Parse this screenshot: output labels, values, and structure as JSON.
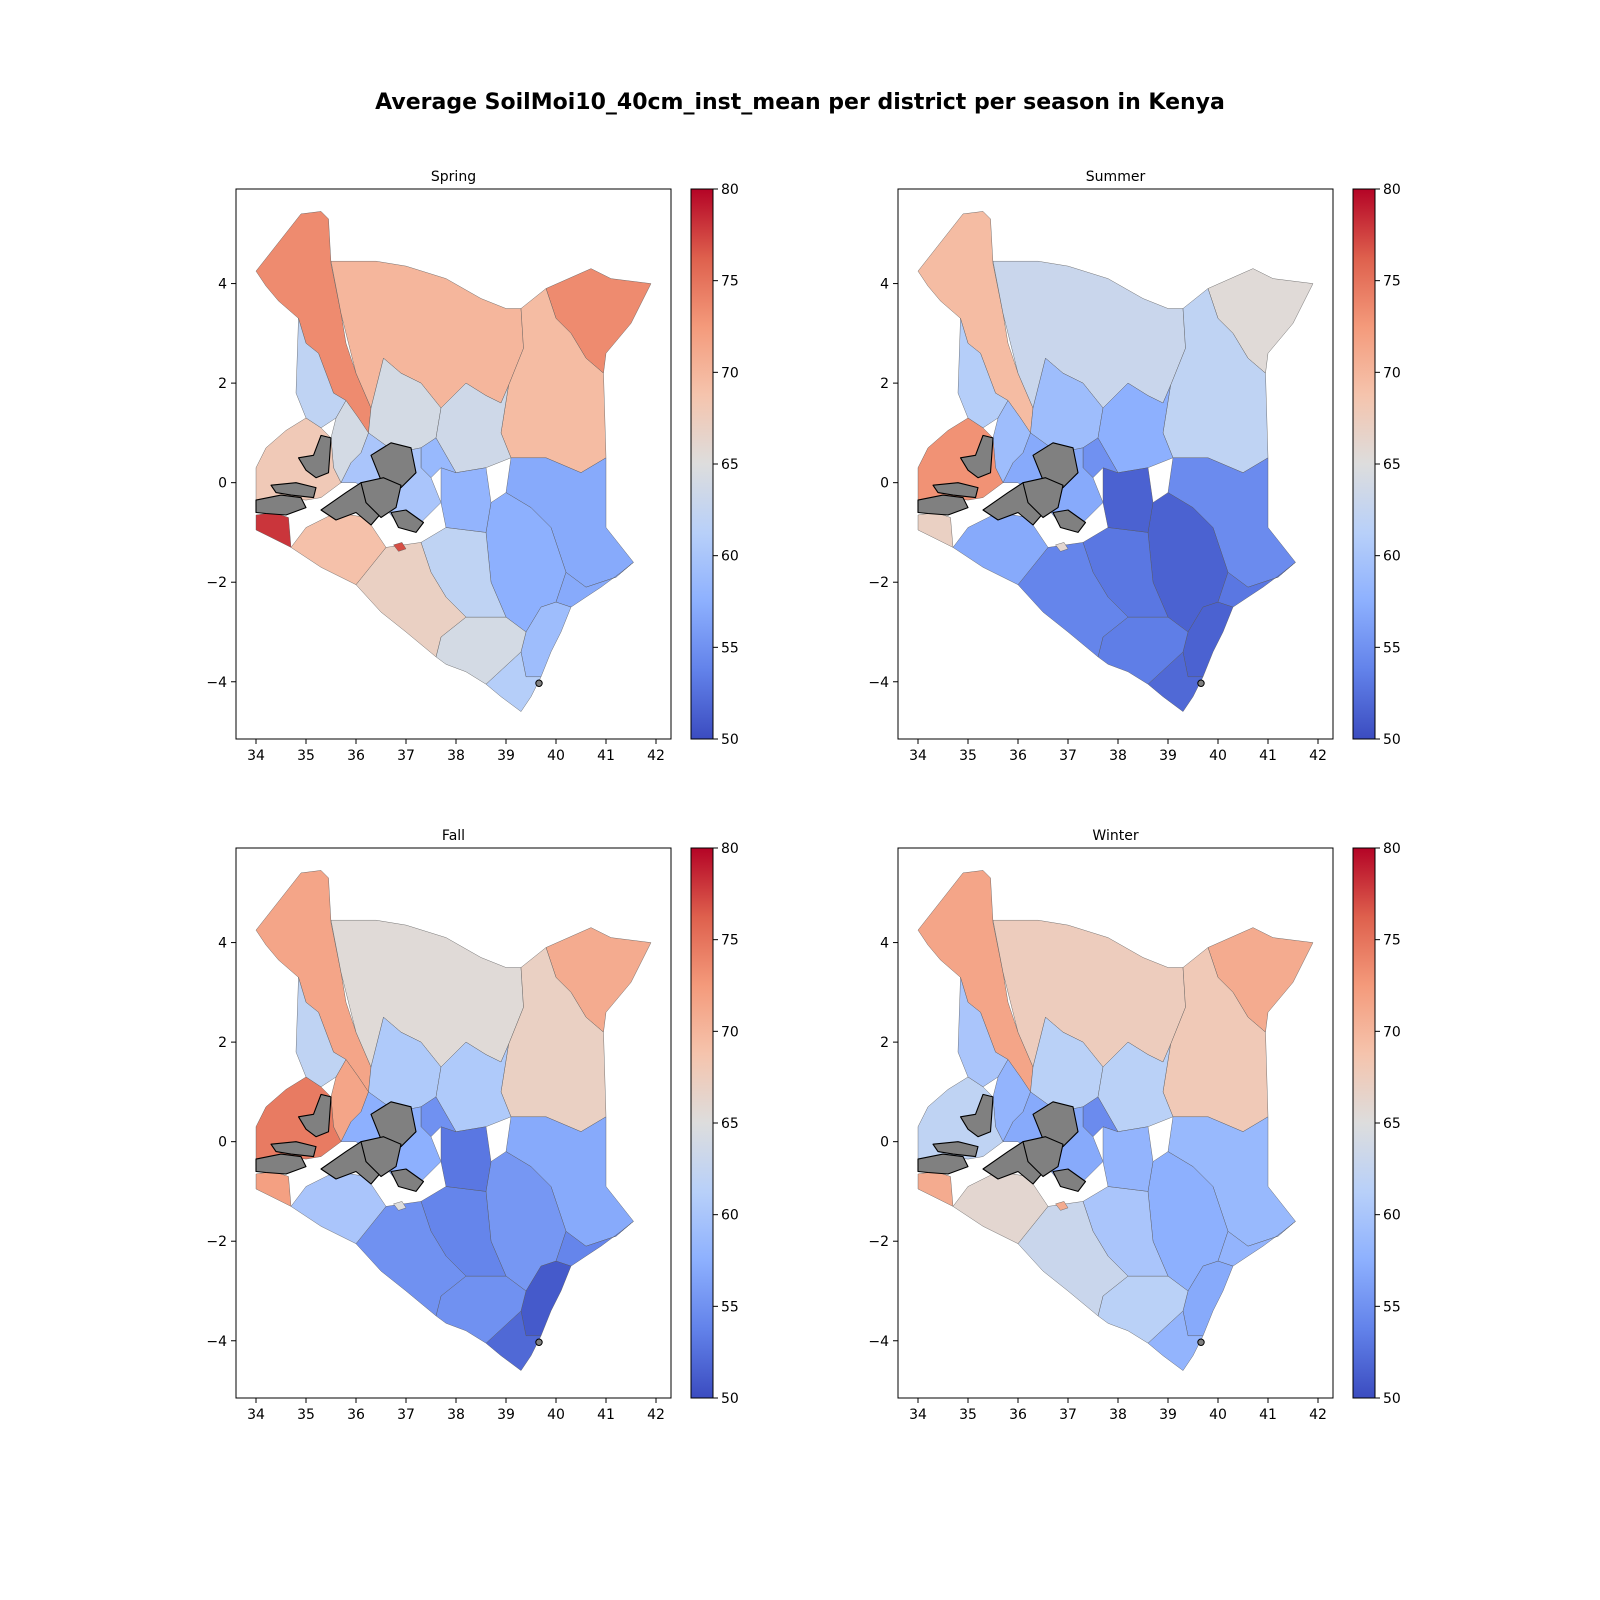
{
  "figure": {
    "title": "Average SoilMoi10_40cm_inst_mean per district per season in Kenya"
  },
  "chart_data": {
    "type": "choropleth",
    "variable": "SoilMoi10_40cm_inst_mean",
    "colormap": "coolwarm",
    "no_data_color": "#808080",
    "color_range": [
      50,
      80
    ],
    "xlim": [
      33.6,
      42.3
    ],
    "ylim": [
      -5.15,
      5.9
    ],
    "x_ticks": [
      34,
      35,
      36,
      37,
      38,
      39,
      40,
      41,
      42
    ],
    "y_ticks": [
      4,
      2,
      0,
      -2,
      -4
    ],
    "colorbar_ticks": [
      80,
      75,
      70,
      65,
      60,
      55,
      50
    ],
    "panels": [
      {
        "title": "Spring",
        "regions": {
          "turkana": 73.5,
          "marsabit": 70,
          "wajir": 69.5,
          "mandera": 73.5,
          "westpokot": 62,
          "baringo": 64,
          "samburu": 64,
          "isiolo": 63.5,
          "western": 68,
          "central": 60,
          "meru": 58.5,
          "eastern_mid": 58,
          "garissa": 57,
          "tana": 57.5,
          "lamu": 57,
          "narok": 69,
          "kajiado": 67,
          "makueni": 62,
          "taita": 64,
          "kwale": 61,
          "kilifi": 59,
          "southwest": 78,
          "nairobi": 77
        }
      },
      {
        "title": "Summer",
        "regions": {
          "turkana": 69.5,
          "marsabit": 63,
          "wajir": 62,
          "mandera": 65.5,
          "westpokot": 61,
          "baringo": 59,
          "samburu": 59,
          "isiolo": 57.5,
          "western": 73,
          "central": 57,
          "meru": 55,
          "eastern_mid": 51.5,
          "garissa": 54.5,
          "tana": 51.5,
          "lamu": 53,
          "narok": 57,
          "kajiado": 54,
          "makueni": 53,
          "taita": 53.5,
          "kwale": 52,
          "kilifi": 51.5,
          "southwest": 67,
          "nairobi": 66
        }
      },
      {
        "title": "Fall",
        "regions": {
          "turkana": 71.5,
          "marsabit": 65.5,
          "wajir": 67,
          "mandera": 71,
          "westpokot": 62,
          "baringo": 71.5,
          "samburu": 60.5,
          "isiolo": 60.5,
          "western": 74.5,
          "central": 57.5,
          "meru": 55,
          "eastern_mid": 53,
          "garissa": 57,
          "tana": 55.5,
          "lamu": 54,
          "narok": 60,
          "kajiado": 55,
          "makueni": 54,
          "taita": 55,
          "kwale": 52,
          "kilifi": 51,
          "southwest": 72,
          "nairobi": 65
        }
      },
      {
        "title": "Winter",
        "regions": {
          "turkana": 71.5,
          "marsabit": 67.5,
          "wajir": 68,
          "mandera": 71,
          "westpokot": 60,
          "baringo": 58,
          "samburu": 61.5,
          "isiolo": 61.5,
          "western": 62,
          "central": 57,
          "meru": 54.5,
          "eastern_mid": 58,
          "garissa": 58.5,
          "tana": 57.5,
          "lamu": 58,
          "narok": 66,
          "kajiado": 63,
          "makueni": 60,
          "taita": 61.5,
          "kwale": 58,
          "kilifi": 57,
          "southwest": 71,
          "nairobi": 71
        }
      }
    ]
  }
}
